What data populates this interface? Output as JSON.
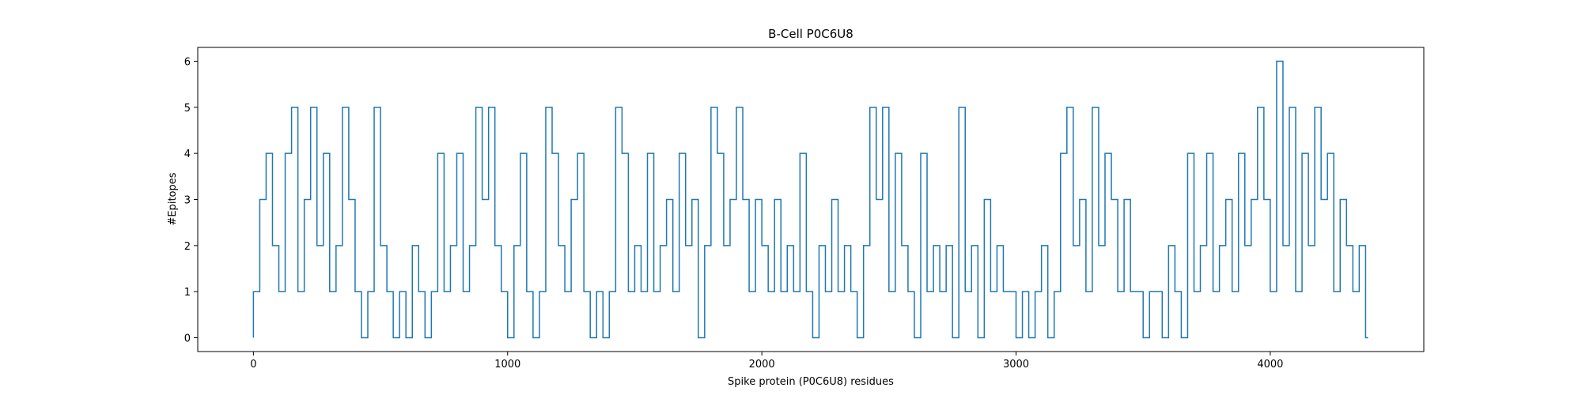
{
  "chart_data": {
    "type": "line",
    "step": "pre",
    "title": "B-Cell P0C6U8",
    "x_label": "Spike protein (P0C6U8) residues",
    "y_label": "#Epitopes",
    "color": "#1f77b4",
    "xlim": [
      -219,
      4604
    ],
    "ylim": [
      -0.3,
      6.3
    ],
    "xticks": [
      0,
      1000,
      2000,
      3000,
      4000
    ],
    "yticks": [
      0,
      1,
      2,
      3,
      4,
      5,
      6
    ],
    "x": [
      0,
      25,
      50,
      75,
      100,
      125,
      150,
      175,
      200,
      225,
      250,
      275,
      300,
      325,
      350,
      375,
      400,
      425,
      450,
      475,
      500,
      525,
      550,
      575,
      600,
      625,
      650,
      675,
      700,
      725,
      750,
      775,
      800,
      825,
      850,
      875,
      900,
      925,
      950,
      975,
      1000,
      1025,
      1050,
      1075,
      1100,
      1125,
      1150,
      1175,
      1200,
      1225,
      1250,
      1275,
      1300,
      1325,
      1350,
      1375,
      1400,
      1425,
      1450,
      1475,
      1500,
      1525,
      1550,
      1575,
      1600,
      1625,
      1650,
      1675,
      1700,
      1725,
      1750,
      1775,
      1800,
      1825,
      1850,
      1875,
      1900,
      1925,
      1950,
      1975,
      2000,
      2025,
      2050,
      2075,
      2100,
      2125,
      2150,
      2175,
      2200,
      2225,
      2250,
      2275,
      2300,
      2325,
      2350,
      2375,
      2400,
      2425,
      2450,
      2475,
      2500,
      2525,
      2550,
      2575,
      2600,
      2625,
      2650,
      2675,
      2700,
      2725,
      2750,
      2775,
      2800,
      2825,
      2850,
      2875,
      2900,
      2925,
      2950,
      2975,
      3000,
      3025,
      3050,
      3075,
      3100,
      3125,
      3150,
      3175,
      3200,
      3225,
      3250,
      3275,
      3300,
      3325,
      3350,
      3375,
      3400,
      3425,
      3450,
      3475,
      3500,
      3525,
      3550,
      3575,
      3600,
      3625,
      3650,
      3675,
      3700,
      3725,
      3750,
      3775,
      3800,
      3825,
      3850,
      3875,
      3900,
      3925,
      3950,
      3975,
      4000,
      4025,
      4050,
      4075,
      4100,
      4125,
      4150,
      4175,
      4200,
      4225,
      4250,
      4275,
      4300,
      4325,
      4350,
      4375,
      4385
    ],
    "values": [
      0,
      1,
      3,
      4,
      2,
      1,
      4,
      5,
      1,
      3,
      5,
      2,
      4,
      1,
      2,
      5,
      3,
      1,
      0,
      1,
      5,
      2,
      1,
      0,
      1,
      0,
      2,
      1,
      0,
      1,
      4,
      1,
      2,
      4,
      1,
      2,
      5,
      3,
      5,
      2,
      1,
      0,
      2,
      4,
      1,
      0,
      1,
      5,
      4,
      2,
      1,
      3,
      4,
      1,
      0,
      1,
      0,
      1,
      5,
      4,
      1,
      2,
      1,
      4,
      1,
      2,
      3,
      1,
      4,
      2,
      3,
      0,
      2,
      5,
      4,
      2,
      3,
      5,
      3,
      1,
      3,
      2,
      1,
      3,
      1,
      2,
      1,
      4,
      1,
      0,
      2,
      1,
      3,
      1,
      2,
      1,
      0,
      2,
      5,
      3,
      5,
      1,
      4,
      2,
      1,
      0,
      4,
      1,
      2,
      1,
      2,
      0,
      5,
      1,
      2,
      0,
      3,
      1,
      2,
      1,
      1,
      0,
      1,
      0,
      1,
      2,
      0,
      1,
      4,
      5,
      2,
      3,
      1,
      5,
      2,
      4,
      3,
      1,
      3,
      1,
      1,
      0,
      1,
      1,
      0,
      2,
      1,
      0,
      4,
      1,
      2,
      4,
      1,
      2,
      3,
      1,
      4,
      2,
      3,
      5,
      3,
      1,
      6,
      2,
      5,
      1,
      4,
      2,
      5,
      3,
      4,
      1,
      3,
      2,
      1,
      2,
      0
    ]
  }
}
